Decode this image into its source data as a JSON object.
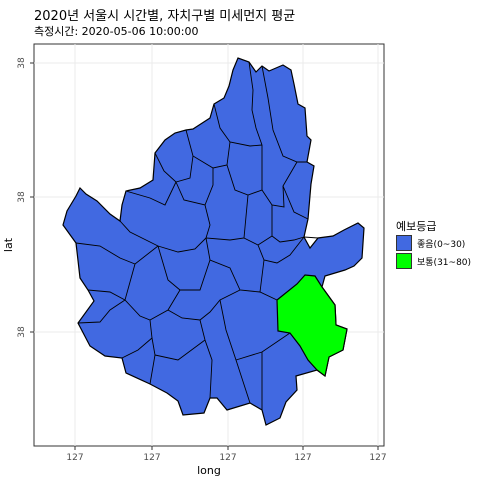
{
  "title": "2020년 서울시 시간별, 자치구별 미세먼지 평균",
  "subtitle": "측정시간: 2020-05-06 10:00:00",
  "axes": {
    "xlabel": "long",
    "ylabel": "lat",
    "x_ticks": [
      "127",
      "127",
      "127",
      "127",
      "127"
    ],
    "y_ticks": [
      "38",
      "38",
      "38"
    ]
  },
  "legend": {
    "title": "예보등급",
    "items": [
      {
        "label": "좋음(0~30)",
        "color": "#4169E1"
      },
      {
        "label": "보통(31~80)",
        "color": "#00FF00"
      }
    ]
  },
  "colors": {
    "good": "#4169E1",
    "normal": "#00FF00",
    "border": "#000000",
    "grid": "#EBEBEB"
  }
}
